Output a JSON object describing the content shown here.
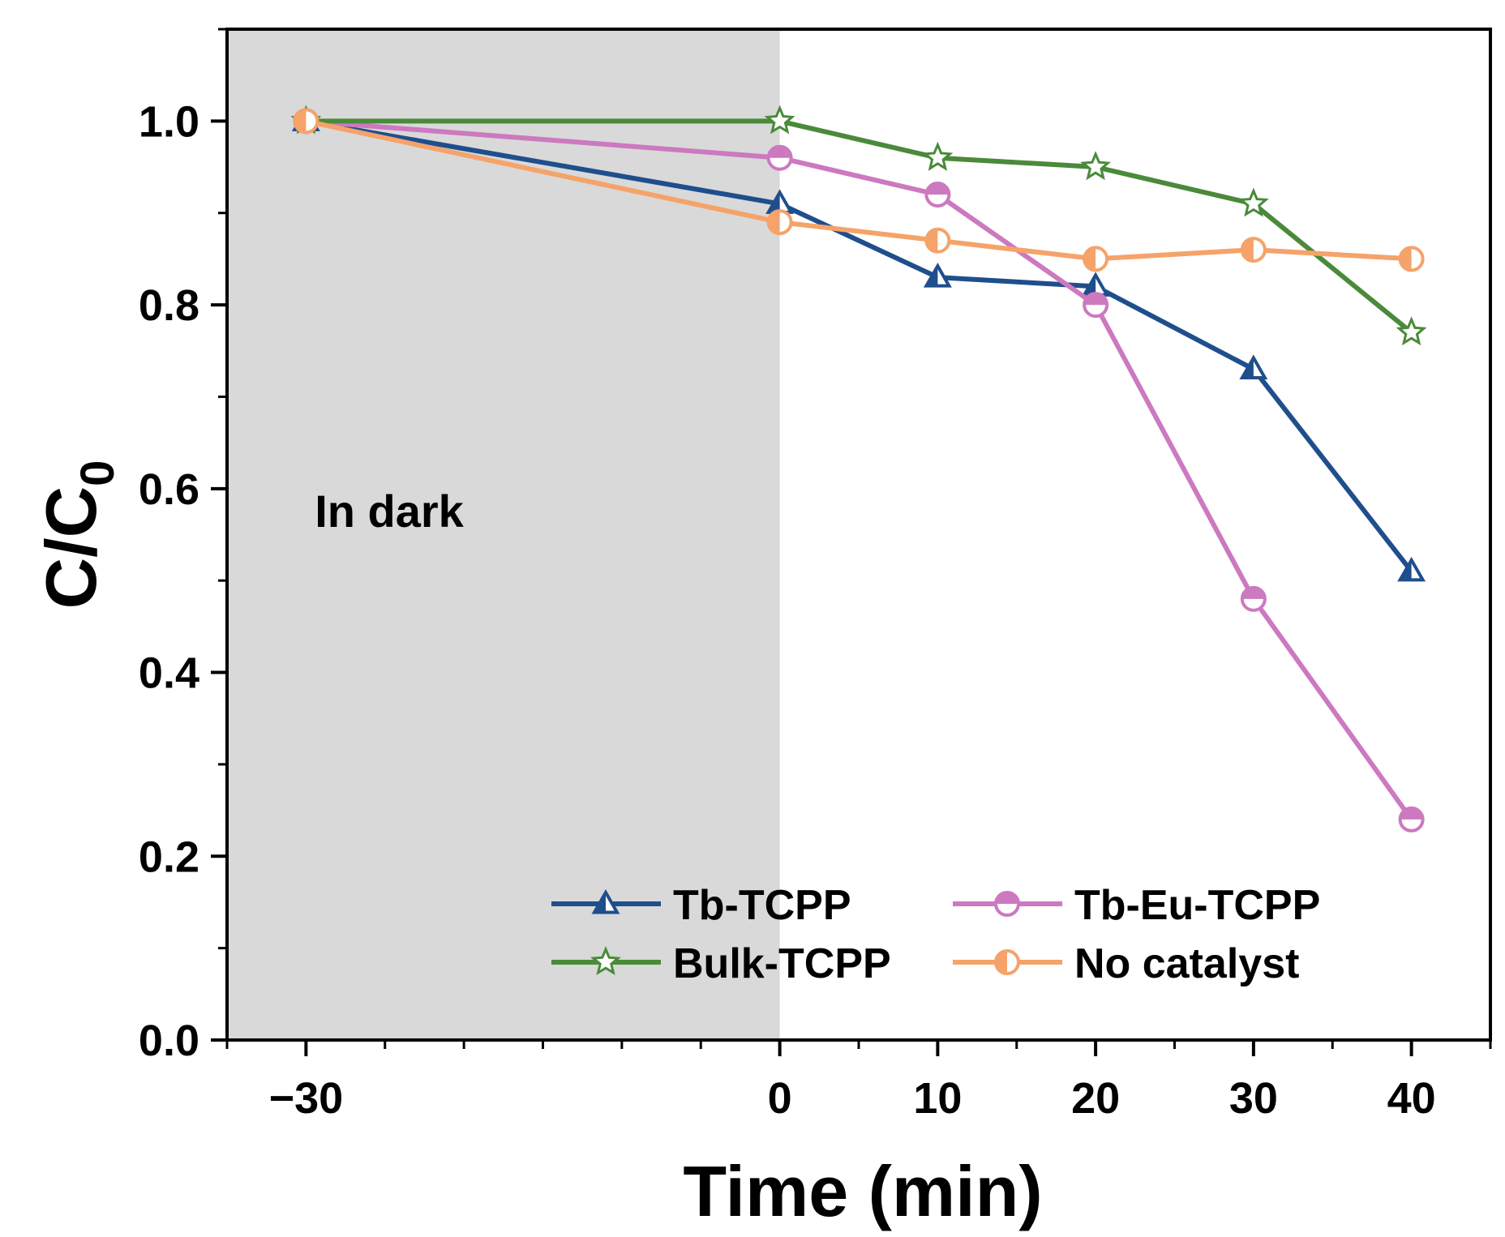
{
  "chart_data": {
    "type": "line",
    "title": "",
    "xlabel": "Time (min)",
    "ylabel_main": "C/C",
    "ylabel_sub": "0",
    "x": [
      -30,
      0,
      10,
      20,
      30,
      40
    ],
    "xlim": [
      -35,
      45
    ],
    "ylim": [
      0.0,
      1.1
    ],
    "xticks": [
      -30,
      0,
      10,
      20,
      30,
      40
    ],
    "xtick_labels": [
      "−30",
      "0",
      "10",
      "20",
      "30",
      "40"
    ],
    "yticks": [
      0.0,
      0.2,
      0.4,
      0.6,
      0.8,
      1.0
    ],
    "ytick_labels": [
      "0.0",
      "0.2",
      "0.4",
      "0.6",
      "0.8",
      "1.0"
    ],
    "grid": false,
    "shaded_region": {
      "x_from": -35,
      "x_to": 0,
      "label": "In dark",
      "color": "#d9d9d9"
    },
    "legend_position": "bottom-center",
    "series": [
      {
        "name": "Tb-TCPP",
        "color": "#1f4e8c",
        "marker": "triangle",
        "values": [
          1.0,
          0.91,
          0.83,
          0.82,
          0.73,
          0.51
        ]
      },
      {
        "name": "Tb-Eu-TCPP",
        "color": "#cc79c0",
        "marker": "circle",
        "values": [
          1.0,
          0.96,
          0.92,
          0.8,
          0.48,
          0.24
        ]
      },
      {
        "name": "Bulk-TCPP",
        "color": "#4a8a3a",
        "marker": "star",
        "values": [
          1.0,
          1.0,
          0.96,
          0.95,
          0.91,
          0.77
        ]
      },
      {
        "name": "No catalyst",
        "color": "#f5a36a",
        "marker": "halfcircle",
        "values": [
          1.0,
          0.89,
          0.87,
          0.85,
          0.86,
          0.85
        ]
      }
    ]
  }
}
